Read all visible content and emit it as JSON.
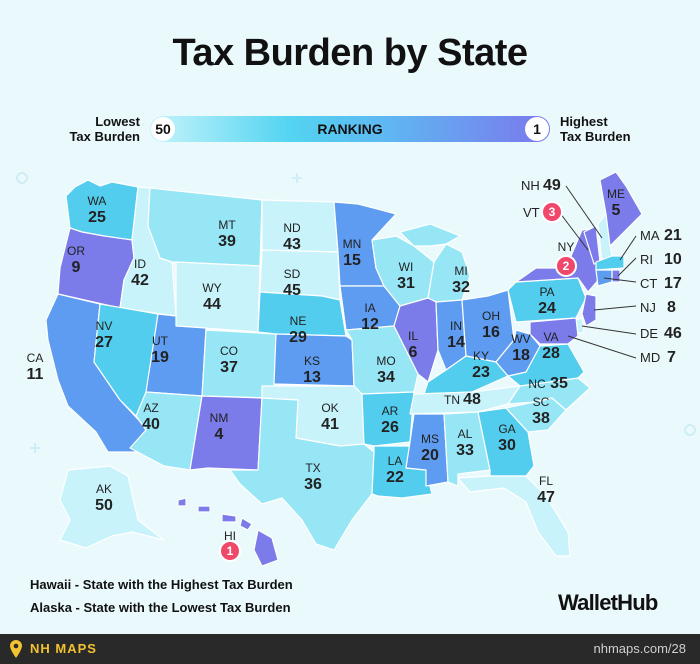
{
  "title": "Tax Burden by State",
  "legend": {
    "low_label_line1": "Lowest",
    "low_label_line2": "Tax Burden",
    "high_label_line1": "Highest",
    "high_label_line2": "Tax Burden",
    "low_value": "50",
    "high_value": "1",
    "middle_label": "RANKING"
  },
  "colors": {
    "background": "#eaf9fc",
    "rank_1_10": "#7b7bea",
    "rank_11_20": "#5d9cf0",
    "rank_21_30": "#52cdee",
    "rank_31_40": "#97e6f6",
    "rank_41_50": "#c8f3fb",
    "pin": "#f0486b",
    "footer": "#292929",
    "footer_brand": "#f2c230"
  },
  "states": {
    "WA": {
      "abbr": "WA",
      "rank": "25"
    },
    "OR": {
      "abbr": "OR",
      "rank": "9"
    },
    "CA": {
      "abbr": "CA",
      "rank": "11"
    },
    "ID": {
      "abbr": "ID",
      "rank": "42"
    },
    "NV": {
      "abbr": "NV",
      "rank": "27"
    },
    "MT": {
      "abbr": "MT",
      "rank": "39"
    },
    "WY": {
      "abbr": "WY",
      "rank": "44"
    },
    "UT": {
      "abbr": "UT",
      "rank": "19"
    },
    "AZ": {
      "abbr": "AZ",
      "rank": "40"
    },
    "CO": {
      "abbr": "CO",
      "rank": "37"
    },
    "NM": {
      "abbr": "NM",
      "rank": "4"
    },
    "ND": {
      "abbr": "ND",
      "rank": "43"
    },
    "SD": {
      "abbr": "SD",
      "rank": "45"
    },
    "NE": {
      "abbr": "NE",
      "rank": "29"
    },
    "KS": {
      "abbr": "KS",
      "rank": "13"
    },
    "OK": {
      "abbr": "OK",
      "rank": "41"
    },
    "TX": {
      "abbr": "TX",
      "rank": "36"
    },
    "MN": {
      "abbr": "MN",
      "rank": "15"
    },
    "IA": {
      "abbr": "IA",
      "rank": "12"
    },
    "MO": {
      "abbr": "MO",
      "rank": "34"
    },
    "AR": {
      "abbr": "AR",
      "rank": "26"
    },
    "LA": {
      "abbr": "LA",
      "rank": "22"
    },
    "WI": {
      "abbr": "WI",
      "rank": "31"
    },
    "IL": {
      "abbr": "IL",
      "rank": "6"
    },
    "MI": {
      "abbr": "MI",
      "rank": "32"
    },
    "IN": {
      "abbr": "IN",
      "rank": "14"
    },
    "OH": {
      "abbr": "OH",
      "rank": "16"
    },
    "KY": {
      "abbr": "KY",
      "rank": "23"
    },
    "TN": {
      "abbr": "TN",
      "rank": "48"
    },
    "MS": {
      "abbr": "MS",
      "rank": "20"
    },
    "AL": {
      "abbr": "AL",
      "rank": "33"
    },
    "GA": {
      "abbr": "GA",
      "rank": "30"
    },
    "FL": {
      "abbr": "FL",
      "rank": "47"
    },
    "SC": {
      "abbr": "SC",
      "rank": "38"
    },
    "NC": {
      "abbr": "NC",
      "rank": "35"
    },
    "VA": {
      "abbr": "VA",
      "rank": "28"
    },
    "WV": {
      "abbr": "WV",
      "rank": "18"
    },
    "PA": {
      "abbr": "PA",
      "rank": "24"
    },
    "NY": {
      "abbr": "NY",
      "rank": "2"
    },
    "VT": {
      "abbr": "VT",
      "rank": "3"
    },
    "NH": {
      "abbr": "NH",
      "rank": "49"
    },
    "ME": {
      "abbr": "ME",
      "rank": "5"
    },
    "MA": {
      "abbr": "MA",
      "rank": "21"
    },
    "RI": {
      "abbr": "RI",
      "rank": "10"
    },
    "CT": {
      "abbr": "CT",
      "rank": "17"
    },
    "NJ": {
      "abbr": "NJ",
      "rank": "8"
    },
    "DE": {
      "abbr": "DE",
      "rank": "46"
    },
    "MD": {
      "abbr": "MD",
      "rank": "7"
    },
    "AK": {
      "abbr": "AK",
      "rank": "50"
    },
    "HI": {
      "abbr": "HI",
      "rank": "1"
    }
  },
  "pins": {
    "hi": "1",
    "ny": "2",
    "vt": "3"
  },
  "notes": {
    "hawaii_bold": "Hawaii",
    "hawaii_text": " - State with the Highest Tax Burden",
    "alaska_bold": "Alaska",
    "alaska_text": " - State with the Lowest Tax Burden"
  },
  "brand": "WalletHub",
  "footer": {
    "brand": "NH MAPS",
    "url": "nhmaps.com/28"
  }
}
